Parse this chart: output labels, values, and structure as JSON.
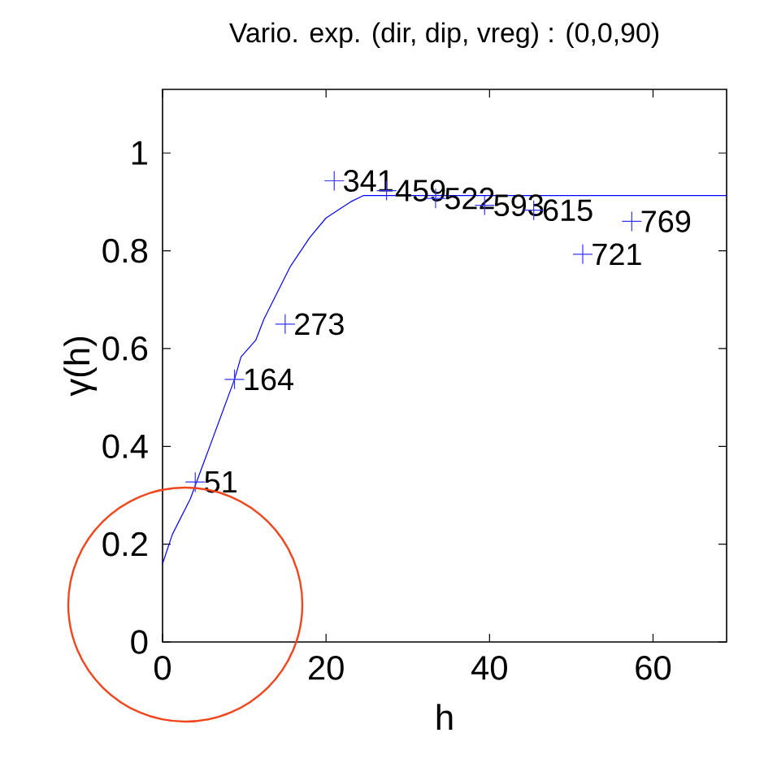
{
  "chart_data": {
    "type": "scatter",
    "title": "Vario. exp. (dir, dip, vreg) : (0,0,90)",
    "xlabel": "h",
    "ylabel": "γ(h)",
    "xlim": [
      0,
      69
    ],
    "ylim": [
      0,
      1.13
    ],
    "xticks": [
      0,
      20,
      40,
      60
    ],
    "yticks": [
      0,
      0.2,
      0.4,
      0.6,
      0.8,
      1
    ],
    "series": [
      {
        "type": "line",
        "marker": "none",
        "color": "#0000ff",
        "x": [
          0,
          1.2,
          3.4,
          5.4,
          8.8,
          9.6,
          11.4,
          12.4,
          15.6,
          18,
          20,
          23,
          24.6,
          69
        ],
        "values": [
          0.16,
          0.22,
          0.293,
          0.383,
          0.537,
          0.583,
          0.617,
          0.66,
          0.767,
          0.827,
          0.867,
          0.9,
          0.913,
          0.913
        ]
      },
      {
        "marker": "cross",
        "color": "#3333ff",
        "x": [
          4,
          8.8,
          15,
          21,
          27.4,
          33.4,
          39.4,
          45.4,
          51.4,
          57.4
        ],
        "values": [
          0.327,
          0.537,
          0.65,
          0.943,
          0.923,
          0.907,
          0.893,
          0.883,
          0.793,
          0.86
        ]
      }
    ],
    "annotations": [
      {
        "text": "51",
        "x": 4,
        "y": 0.327
      },
      {
        "text": "164",
        "x": 8.8,
        "y": 0.537
      },
      {
        "text": "273",
        "x": 15,
        "y": 0.65
      },
      {
        "text": "341",
        "x": 21,
        "y": 0.943
      },
      {
        "text": "459",
        "x": 27.4,
        "y": 0.923
      },
      {
        "text": "522",
        "x": 33.4,
        "y": 0.907
      },
      {
        "text": "593",
        "x": 39.4,
        "y": 0.893
      },
      {
        "text": "615",
        "x": 45.4,
        "y": 0.883
      },
      {
        "text": "721",
        "x": 51.4,
        "y": 0.793
      },
      {
        "text": "769",
        "x": 57.4,
        "y": 0.86
      }
    ]
  }
}
